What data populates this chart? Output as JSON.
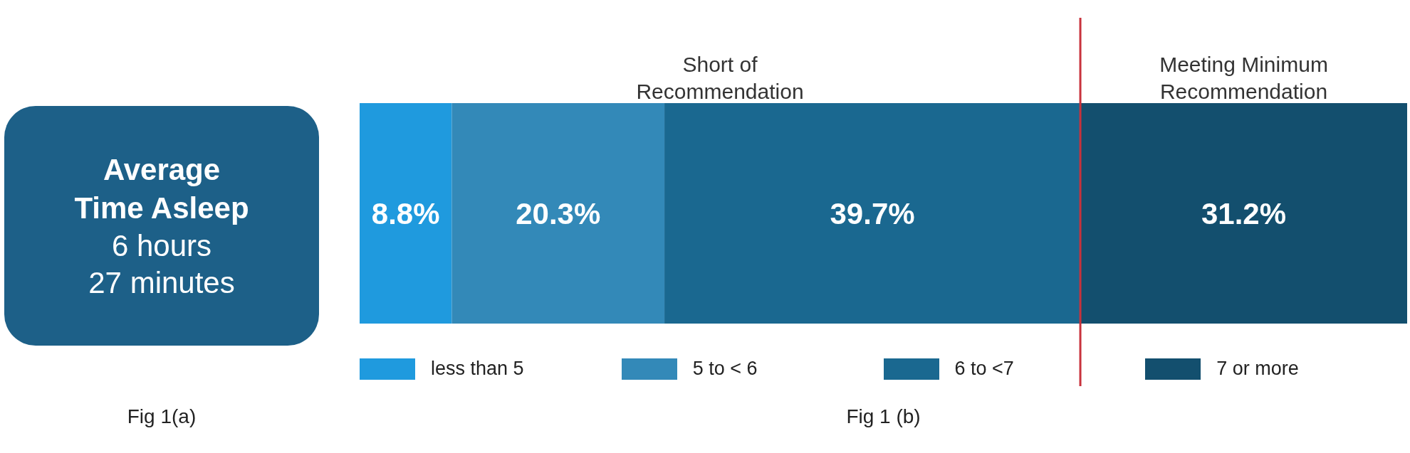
{
  "chart_data": [
    {
      "type": "other",
      "title": "Average Time Asleep",
      "color": "#1d6088",
      "annotations": [
        "6 hours",
        "27 minutes",
        "Fig 1(a)"
      ]
    },
    {
      "type": "bar",
      "orientation": "horizontal",
      "stacked": true,
      "categories": [
        null
      ],
      "xlim": [
        0,
        100
      ],
      "tick_labels": false,
      "legend": "bottom",
      "series": [
        {
          "name": "less than 5",
          "color": "#1f9ade",
          "values": [
            8.8
          ],
          "value_labels": [
            "8.8%"
          ]
        },
        {
          "name": "5 to < 6",
          "color": "#3389b8",
          "values": [
            20.3
          ],
          "value_labels": [
            "20.3%"
          ]
        },
        {
          "name": "6 to <7",
          "color": "#1a6890",
          "values": [
            39.7
          ],
          "value_labels": [
            "39.7%"
          ]
        },
        {
          "name": "7 or more",
          "color": "#134f6e",
          "values": [
            31.2
          ],
          "value_labels": [
            "31.2%"
          ]
        }
      ],
      "ref_lines": [
        {
          "axis": "x",
          "value": 68.8,
          "color": "#c8323c"
        }
      ],
      "annotations": [
        "Short of Recommendation",
        "Meeting Minimum Recommendation",
        "Fig 1 (b)"
      ]
    }
  ]
}
